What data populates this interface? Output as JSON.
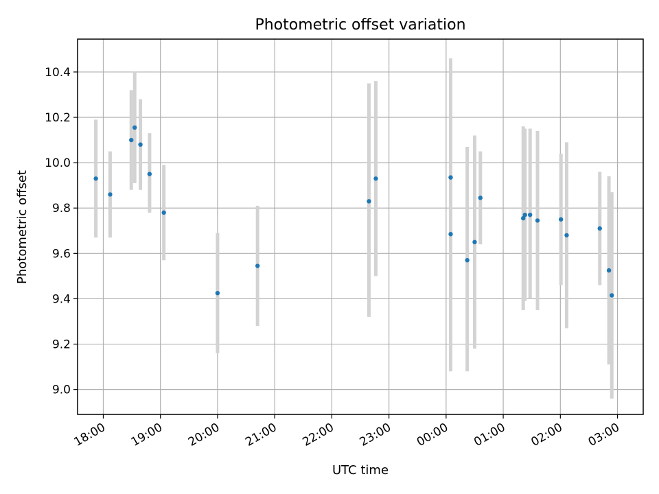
{
  "chart_data": {
    "type": "scatter",
    "title": "Photometric offset variation",
    "xlabel": "UTC time",
    "ylabel": "Photometric offset",
    "xlim": [
      17.55,
      27.45
    ],
    "ylim": [
      8.89,
      10.545
    ],
    "x_unit": "hours since 00:00 of first night (values above 24 are the next day)",
    "xticks": [
      {
        "value": 18,
        "label": "18:00"
      },
      {
        "value": 19,
        "label": "19:00"
      },
      {
        "value": 20,
        "label": "20:00"
      },
      {
        "value": 21,
        "label": "21:00"
      },
      {
        "value": 22,
        "label": "22:00"
      },
      {
        "value": 23,
        "label": "23:00"
      },
      {
        "value": 24,
        "label": "00:00"
      },
      {
        "value": 25,
        "label": "01:00"
      },
      {
        "value": 26,
        "label": "02:00"
      },
      {
        "value": 27,
        "label": "03:00"
      }
    ],
    "yticks": [
      {
        "value": 9.0,
        "label": "9.0"
      },
      {
        "value": 9.2,
        "label": "9.2"
      },
      {
        "value": 9.4,
        "label": "9.4"
      },
      {
        "value": 9.6,
        "label": "9.6"
      },
      {
        "value": 9.8,
        "label": "9.8"
      },
      {
        "value": 10.0,
        "label": "10.0"
      },
      {
        "value": 10.2,
        "label": "10.2"
      },
      {
        "value": 10.4,
        "label": "10.4"
      }
    ],
    "grid": true,
    "colors": {
      "marker": "#1f77b4",
      "errorbar": "#d3d3d3",
      "grid": "#b0b0b0"
    },
    "series": [
      {
        "name": "offset",
        "points": [
          {
            "x": 17.87,
            "y": 9.93,
            "ylo": 9.67,
            "yhi": 10.19
          },
          {
            "x": 18.12,
            "y": 9.86,
            "ylo": 9.67,
            "yhi": 10.05
          },
          {
            "x": 18.49,
            "y": 10.1,
            "ylo": 9.88,
            "yhi": 10.32
          },
          {
            "x": 18.55,
            "y": 10.155,
            "ylo": 9.91,
            "yhi": 10.4
          },
          {
            "x": 18.65,
            "y": 10.08,
            "ylo": 9.88,
            "yhi": 10.28
          },
          {
            "x": 18.81,
            "y": 9.95,
            "ylo": 9.78,
            "yhi": 10.13
          },
          {
            "x": 19.06,
            "y": 9.78,
            "ylo": 9.57,
            "yhi": 9.99
          },
          {
            "x": 20.0,
            "y": 9.425,
            "ylo": 9.16,
            "yhi": 9.69
          },
          {
            "x": 20.7,
            "y": 9.545,
            "ylo": 9.28,
            "yhi": 9.81
          },
          {
            "x": 22.65,
            "y": 9.83,
            "ylo": 9.32,
            "yhi": 10.35
          },
          {
            "x": 22.77,
            "y": 9.93,
            "ylo": 9.5,
            "yhi": 10.36
          },
          {
            "x": 24.08,
            "y": 9.935,
            "ylo": 9.58,
            "yhi": 10.3
          },
          {
            "x": 24.08,
            "y": 9.685,
            "ylo": 9.08,
            "yhi": 10.46
          },
          {
            "x": 24.37,
            "y": 9.57,
            "ylo": 9.08,
            "yhi": 10.07
          },
          {
            "x": 24.5,
            "y": 9.65,
            "ylo": 9.18,
            "yhi": 10.12
          },
          {
            "x": 24.6,
            "y": 9.845,
            "ylo": 9.64,
            "yhi": 10.05
          },
          {
            "x": 25.35,
            "y": 9.755,
            "ylo": 9.35,
            "yhi": 10.16
          },
          {
            "x": 25.38,
            "y": 9.77,
            "ylo": 9.39,
            "yhi": 10.15
          },
          {
            "x": 25.47,
            "y": 9.77,
            "ylo": 9.4,
            "yhi": 10.15
          },
          {
            "x": 25.6,
            "y": 9.745,
            "ylo": 9.35,
            "yhi": 10.14
          },
          {
            "x": 26.01,
            "y": 9.75,
            "ylo": 9.46,
            "yhi": 10.04
          },
          {
            "x": 26.11,
            "y": 9.68,
            "ylo": 9.27,
            "yhi": 10.09
          },
          {
            "x": 26.69,
            "y": 9.71,
            "ylo": 9.46,
            "yhi": 9.96
          },
          {
            "x": 26.85,
            "y": 9.525,
            "ylo": 9.11,
            "yhi": 9.94
          },
          {
            "x": 26.9,
            "y": 9.415,
            "ylo": 8.96,
            "yhi": 9.87
          }
        ]
      }
    ]
  }
}
